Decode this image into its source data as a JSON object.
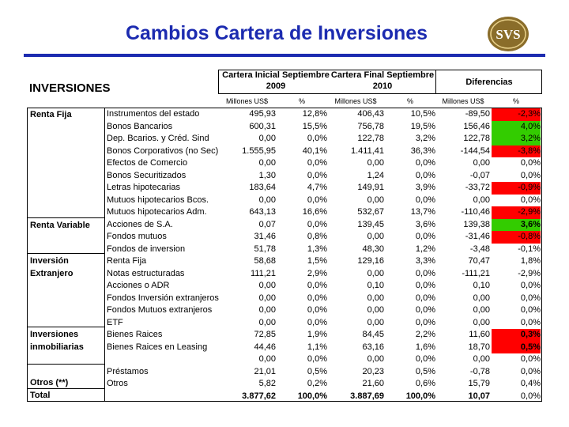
{
  "title": "Cambios Cartera de Inversiones",
  "logo_text": "SVS",
  "section_label": "INVERSIONES",
  "headers": {
    "col1": "Cartera Inicial Septiembre",
    "col1_year": "2009",
    "col2": "Cartera Final Septiembre",
    "col2_year": "2010",
    "col3": "Diferencias"
  },
  "subheaders": {
    "mm1": "Millones US$",
    "pct1": "%",
    "mm2": "Millones US$",
    "pct2": "%",
    "mm3": "Millones US$",
    "pct3": "%"
  },
  "categories": [
    "Renta Fija",
    "Renta Variable",
    "Inversión Extranjero",
    "Inversiones inmobiliarias",
    "Otros (**)",
    "Total"
  ],
  "colors": {
    "red": "#ff0000",
    "green": "#33cc00",
    "title_blue": "#1c2bb0"
  },
  "rows": [
    {
      "desc": "Instrumentos del estado",
      "v1": "495,93",
      "p1": "12,8%",
      "v2": "406,43",
      "p2": "10,5%",
      "v3": "-89,50",
      "p3": "-2,3%",
      "hl": "red"
    },
    {
      "desc": "Bonos Bancarios",
      "v1": "600,31",
      "p1": "15,5%",
      "v2": "756,78",
      "p2": "19,5%",
      "v3": "156,46",
      "p3": "4,0%",
      "hl": "green"
    },
    {
      "desc": "Dep. Bcarios. y Créd. Sind",
      "v1": "0,00",
      "p1": "0,0%",
      "v2": "122,78",
      "p2": "3,2%",
      "v3": "122,78",
      "p3": "3,2%",
      "hl": "green"
    },
    {
      "desc": "Bonos Corporativos (no Sec)",
      "v1": "1.555,95",
      "p1": "40,1%",
      "v2": "1.411,41",
      "p2": "36,3%",
      "v3": "-144,54",
      "p3": "-3,8%",
      "hl": "red"
    },
    {
      "desc": "Efectos de Comercio",
      "v1": "0,00",
      "p1": "0,0%",
      "v2": "0,00",
      "p2": "0,0%",
      "v3": "0,00",
      "p3": "0,0%",
      "hl": ""
    },
    {
      "desc": "Bonos Securitizados",
      "v1": "1,30",
      "p1": "0,0%",
      "v2": "1,24",
      "p2": "0,0%",
      "v3": "-0,07",
      "p3": "0,0%",
      "hl": ""
    },
    {
      "desc": "Letras hipotecarias",
      "v1": "183,64",
      "p1": "4,7%",
      "v2": "149,91",
      "p2": "3,9%",
      "v3": "-33,72",
      "p3": "-0,9%",
      "hl": "red"
    },
    {
      "desc": "Mutuos hipotecarios Bcos.",
      "v1": "0,00",
      "p1": "0,0%",
      "v2": "0,00",
      "p2": "0,0%",
      "v3": "0,00",
      "p3": "0,0%",
      "hl": ""
    },
    {
      "desc": "Mutuos hipotecarios Adm.",
      "v1": "643,13",
      "p1": "16,6%",
      "v2": "532,67",
      "p2": "13,7%",
      "v3": "-110,46",
      "p3": "-2,9%",
      "hl": "red"
    },
    {
      "desc": "Acciones de S.A.",
      "v1": "0,07",
      "p1": "0,0%",
      "v2": "139,45",
      "p2": "3,6%",
      "v3": "139,38",
      "p3": "3,6%",
      "hl": "green",
      "bold": true
    },
    {
      "desc": "Fondos mutuos",
      "v1": "31,46",
      "p1": "0,8%",
      "v2": "0,00",
      "p2": "0,0%",
      "v3": "-31,46",
      "p3": "-0,8%",
      "hl": "red"
    },
    {
      "desc": "Fondos de inversion",
      "v1": "51,78",
      "p1": "1,3%",
      "v2": "48,30",
      "p2": "1,2%",
      "v3": "-3,48",
      "p3": "-0,1%",
      "hl": ""
    },
    {
      "desc": "Renta Fija",
      "v1": "58,68",
      "p1": "1,5%",
      "v2": "129,16",
      "p2": "3,3%",
      "v3": "70,47",
      "p3": "1,8%",
      "hl": ""
    },
    {
      "desc": "Notas estructuradas",
      "v1": "111,21",
      "p1": "2,9%",
      "v2": "0,00",
      "p2": "0,0%",
      "v3": "-111,21",
      "p3": "-2,9%",
      "hl": ""
    },
    {
      "desc": "Acciones o ADR",
      "v1": "0,00",
      "p1": "0,0%",
      "v2": "0,10",
      "p2": "0,0%",
      "v3": "0,10",
      "p3": "0,0%",
      "hl": ""
    },
    {
      "desc": "Fondos Inversión extranjeros",
      "v1": "0,00",
      "p1": "0,0%",
      "v2": "0,00",
      "p2": "0,0%",
      "v3": "0,00",
      "p3": "0,0%",
      "hl": ""
    },
    {
      "desc": "Fondos Mutuos extranjeros",
      "v1": "0,00",
      "p1": "0,0%",
      "v2": "0,00",
      "p2": "0,0%",
      "v3": "0,00",
      "p3": "0,0%",
      "hl": ""
    },
    {
      "desc": "ETF",
      "v1": "0,00",
      "p1": "0,0%",
      "v2": "0,00",
      "p2": "0,0%",
      "v3": "0,00",
      "p3": "0,0%",
      "hl": ""
    },
    {
      "desc": "Bienes Raices",
      "v1": "72,85",
      "p1": "1,9%",
      "v2": "84,45",
      "p2": "2,2%",
      "v3": "11,60",
      "p3": "0,3%",
      "hl": "red",
      "bold": true
    },
    {
      "desc": "Bienes Raices en Leasing",
      "v1": "44,46",
      "p1": "1,1%",
      "v2": "63,16",
      "p2": "1,6%",
      "v3": "18,70",
      "p3": "0,5%",
      "hl": "red",
      "bold": true
    },
    {
      "desc": "",
      "v1": "0,00",
      "p1": "0,0%",
      "v2": "0,00",
      "p2": "0,0%",
      "v3": "0,00",
      "p3": "0,0%",
      "hl": ""
    },
    {
      "desc": "Préstamos",
      "v1": "21,01",
      "p1": "0,5%",
      "v2": "20,23",
      "p2": "0,5%",
      "v3": "-0,78",
      "p3": "0,0%",
      "hl": ""
    },
    {
      "desc": "Otros",
      "v1": "5,82",
      "p1": "0,2%",
      "v2": "21,60",
      "p2": "0,6%",
      "v3": "15,79",
      "p3": "0,4%",
      "hl": ""
    },
    {
      "desc": "",
      "v1": "3.877,62",
      "p1": "100,0%",
      "v2": "3.887,69",
      "p2": "100,0%",
      "v3": "10,07",
      "p3": "0,0%",
      "hl": "",
      "total": true
    }
  ]
}
